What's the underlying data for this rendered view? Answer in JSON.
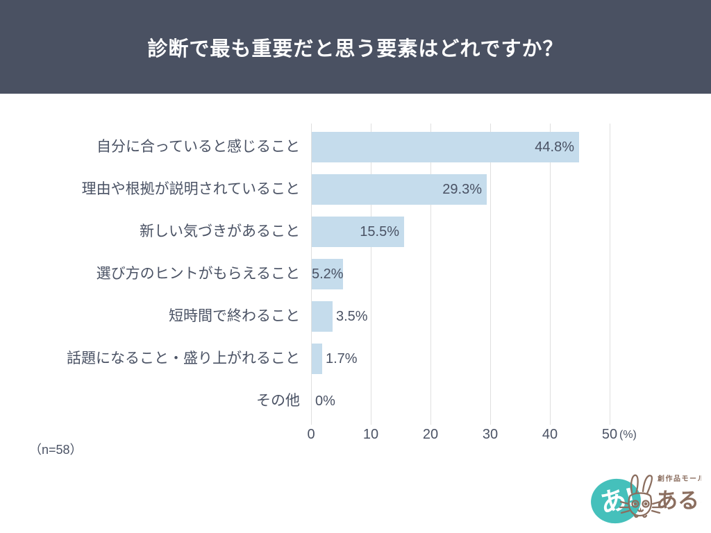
{
  "page": {
    "title": "診断で最も重要だと思う要素はどれですか？",
    "footnote": "（n=58）"
  },
  "chart_data": {
    "type": "bar",
    "orientation": "horizontal",
    "title": "診断で最も重要だと思う要素はどれですか？",
    "categories": [
      "自分に合っていると感じること",
      "理由や根拠が説明されていること",
      "新しい気づきがあること",
      "選び方のヒントがもらえること",
      "短時間で終わること",
      "話題になること・盛り上がれること",
      "その他"
    ],
    "values": [
      44.8,
      29.3,
      15.5,
      5.2,
      3.5,
      1.7,
      0
    ],
    "value_labels": [
      "44.8%",
      "29.3%",
      "15.5%",
      "5.2%",
      "3.5%",
      "1.7%",
      "0%"
    ],
    "x_ticks": [
      0,
      10,
      20,
      30,
      40,
      50
    ],
    "x_unit": "(%)",
    "xlim": [
      0,
      50
    ],
    "grid": "vertical",
    "legend": "none",
    "sample_size": 58,
    "bar_color": "#c5dcec",
    "text_color": "#4a5264",
    "grid_color": "#dfdfdf"
  },
  "logo": {
    "badge_text": "あ!",
    "tagline": "創作品モール",
    "brand_name": "あるる",
    "mascot": "rabbit-line-art",
    "teal": "#45c0bb",
    "brown": "#8b6e5f"
  },
  "theme": {
    "header_bg": "#4a5162",
    "title_color": "#ffffff",
    "background": "#ffffff"
  }
}
